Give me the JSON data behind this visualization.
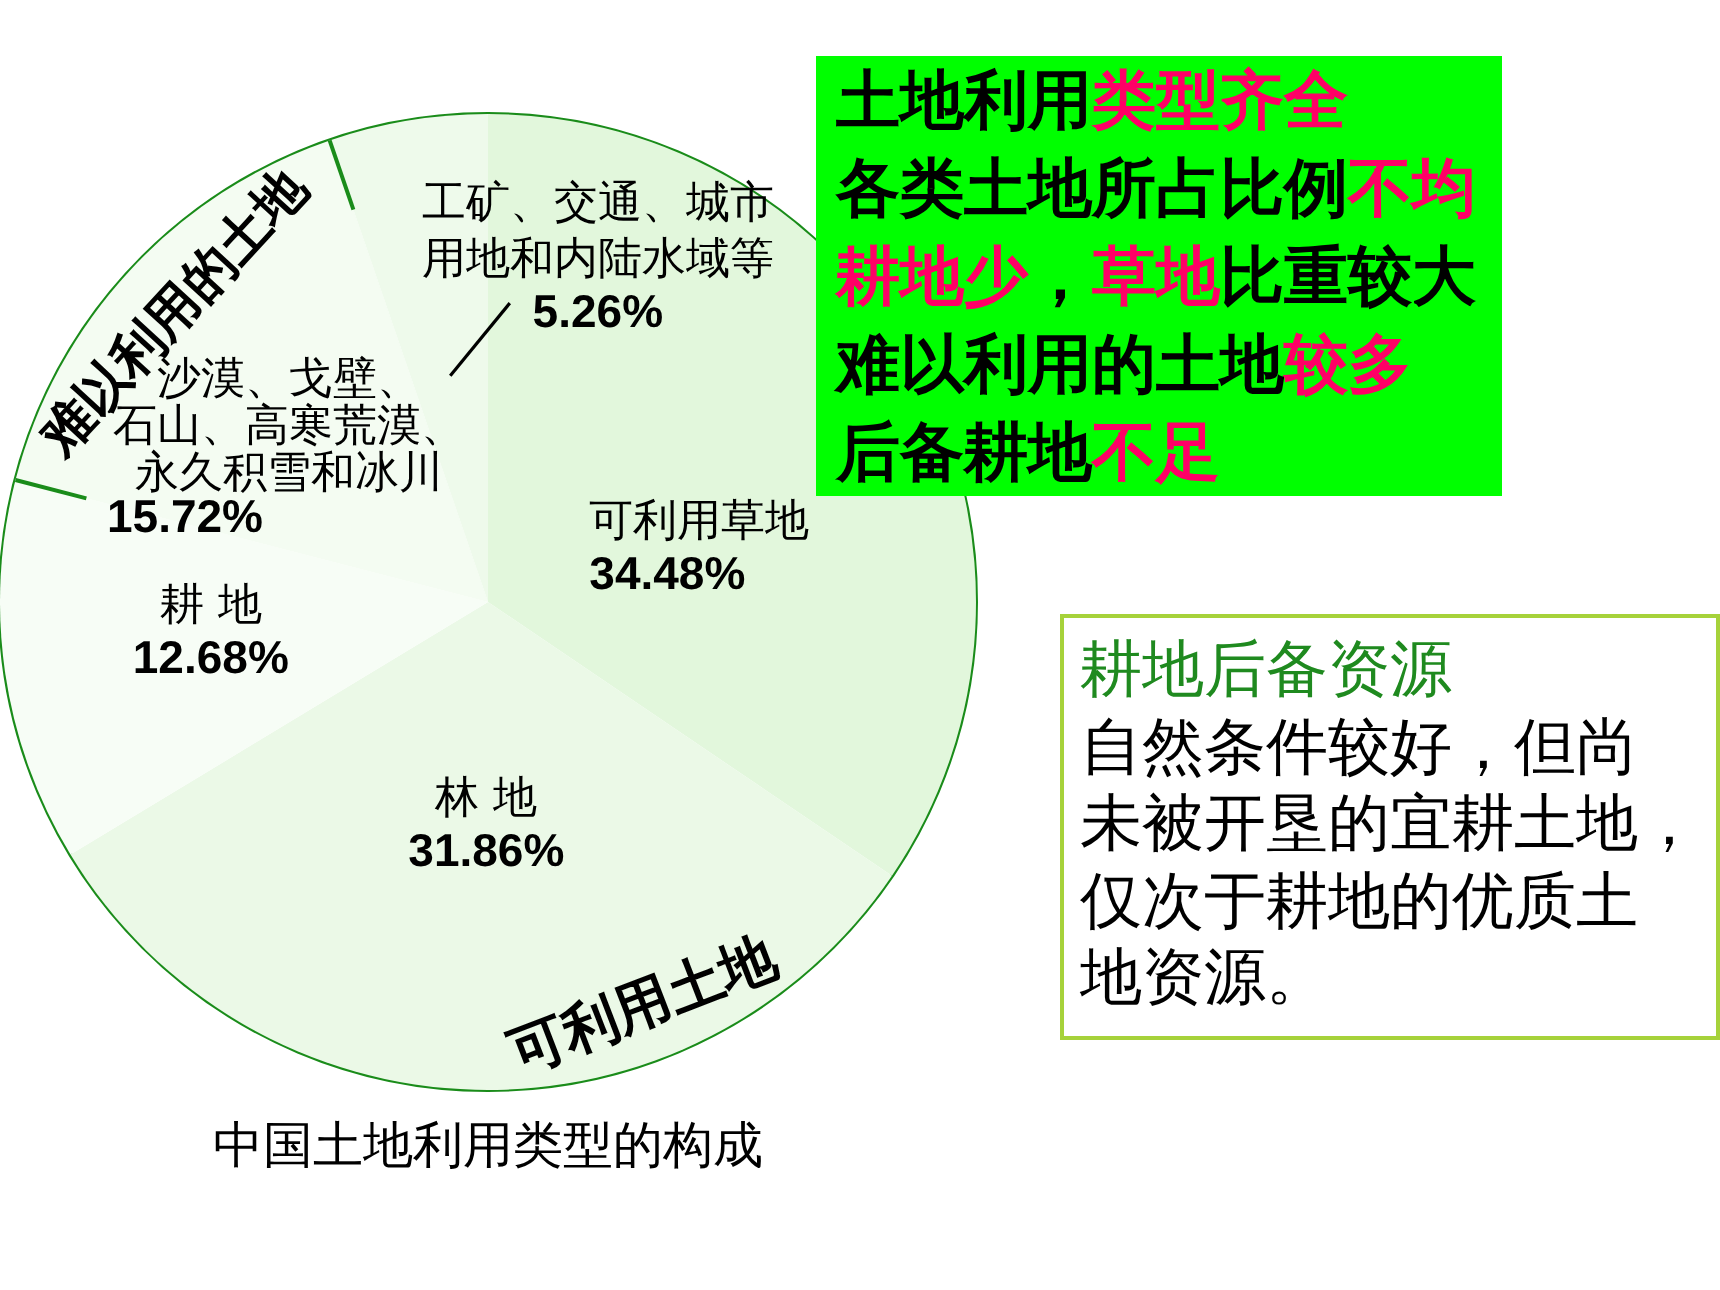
{
  "chart_data": [
    {
      "type": "pie",
      "title": "中国土地利用类型的构成",
      "categories": [
        "可利用草地",
        "林 地",
        "耕 地",
        "沙漠、戈壁、石山、高寒荒漠、永久积雪和冰川",
        "工矿、交通、城市用地和内陆水域等"
      ],
      "values": [
        34.48,
        31.86,
        12.68,
        15.72,
        5.26
      ],
      "value_labels": [
        "34.48%",
        "31.86%",
        "12.68%",
        "15.72%",
        "5.26%"
      ],
      "colors": [
        "#e2f7dc",
        "#ebf9e7",
        "#f7fdf6",
        "#f4fcf2",
        "#eefaeb"
      ],
      "annotations": [
        "难以利用的土地",
        "可利用土地"
      ]
    },
    {
      "type": "other",
      "annotations": [
        "土地利用",
        "类型齐全\n",
        "各类土地所占比例",
        "不均\n",
        "耕地少",
        "，",
        "草地",
        "比重较大\n",
        "难以利用的土地",
        "较多\n",
        "后备耕地",
        "不足"
      ],
      "colors": [
        "#000000",
        "#ff0066",
        "#000000",
        "#ff0066",
        "#ff0066",
        "#000000",
        "#ff0066",
        "#000000",
        "#000000",
        "#ff0066",
        "#000000",
        "#ff0066"
      ]
    },
    {
      "type": "other",
      "title": "耕地后备资源",
      "annotations": [
        "自然条件较好，但尚",
        "未被开垦的宜耕土地，",
        "仅次于耕地的优质土",
        "地资源。"
      ]
    }
  ]
}
